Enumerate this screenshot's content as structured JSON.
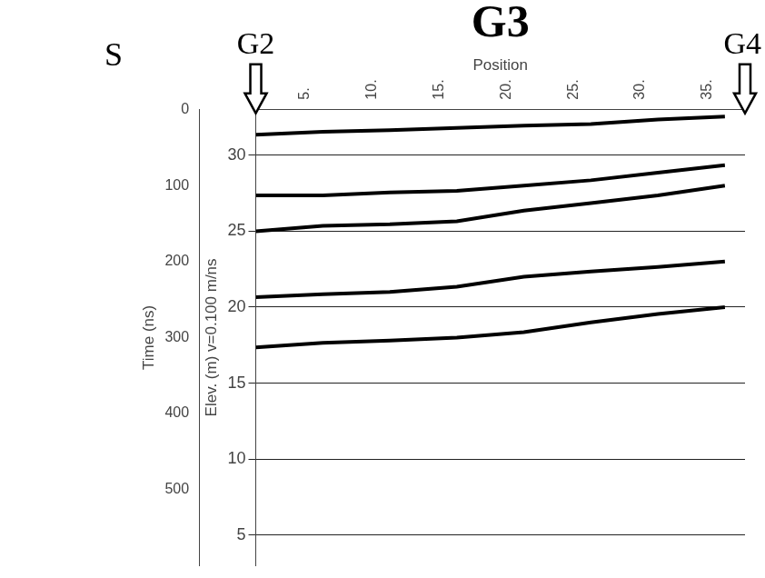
{
  "chart_data": {
    "type": "line",
    "title": "G3",
    "x_label": "Position",
    "y_label": "Time (ns)",
    "y2_label": "Elev. (m) v=0.100 m/ns",
    "xlim": [
      0,
      36.5
    ],
    "xticks": [
      {
        "value": 5,
        "label": "5."
      },
      {
        "value": 10,
        "label": "10."
      },
      {
        "value": 15,
        "label": "15."
      },
      {
        "value": 20,
        "label": "20."
      },
      {
        "value": 25,
        "label": "25."
      },
      {
        "value": 30,
        "label": "30."
      },
      {
        "value": 35,
        "label": "35."
      }
    ],
    "ylim": [
      600,
      0
    ],
    "yticks": [
      0,
      100,
      200,
      300,
      400,
      500
    ],
    "y2lim": [
      3,
      33
    ],
    "y2ticks": [
      5,
      10,
      15,
      20,
      25,
      30
    ],
    "grid": true,
    "x": [
      0,
      5,
      10,
      15,
      20,
      25,
      30,
      35
    ],
    "series": [
      {
        "color": "#000000",
        "line_style": "solid",
        "marker": "none",
        "values": [
          33,
          29,
          27,
          24,
          21,
          19,
          13,
          9
        ]
      },
      {
        "color": "#000000",
        "line_style": "solid",
        "marker": "none",
        "values": [
          113,
          113,
          109,
          107,
          100,
          93,
          83,
          73
        ]
      },
      {
        "color": "#000000",
        "line_style": "solid",
        "marker": "none",
        "values": [
          160,
          153,
          151,
          147,
          133,
          123,
          113,
          100
        ]
      },
      {
        "color": "#000000",
        "line_style": "solid",
        "marker": "none",
        "values": [
          247,
          243,
          240,
          233,
          220,
          213,
          207,
          200
        ]
      },
      {
        "color": "#000000",
        "line_style": "solid",
        "marker": "none",
        "values": [
          313,
          307,
          304,
          300,
          293,
          280,
          269,
          260
        ]
      }
    ],
    "annotations": [
      {
        "text": "S"
      },
      {
        "text": "G2",
        "x": 0
      },
      {
        "text": "G4",
        "x": 36.5
      }
    ]
  }
}
